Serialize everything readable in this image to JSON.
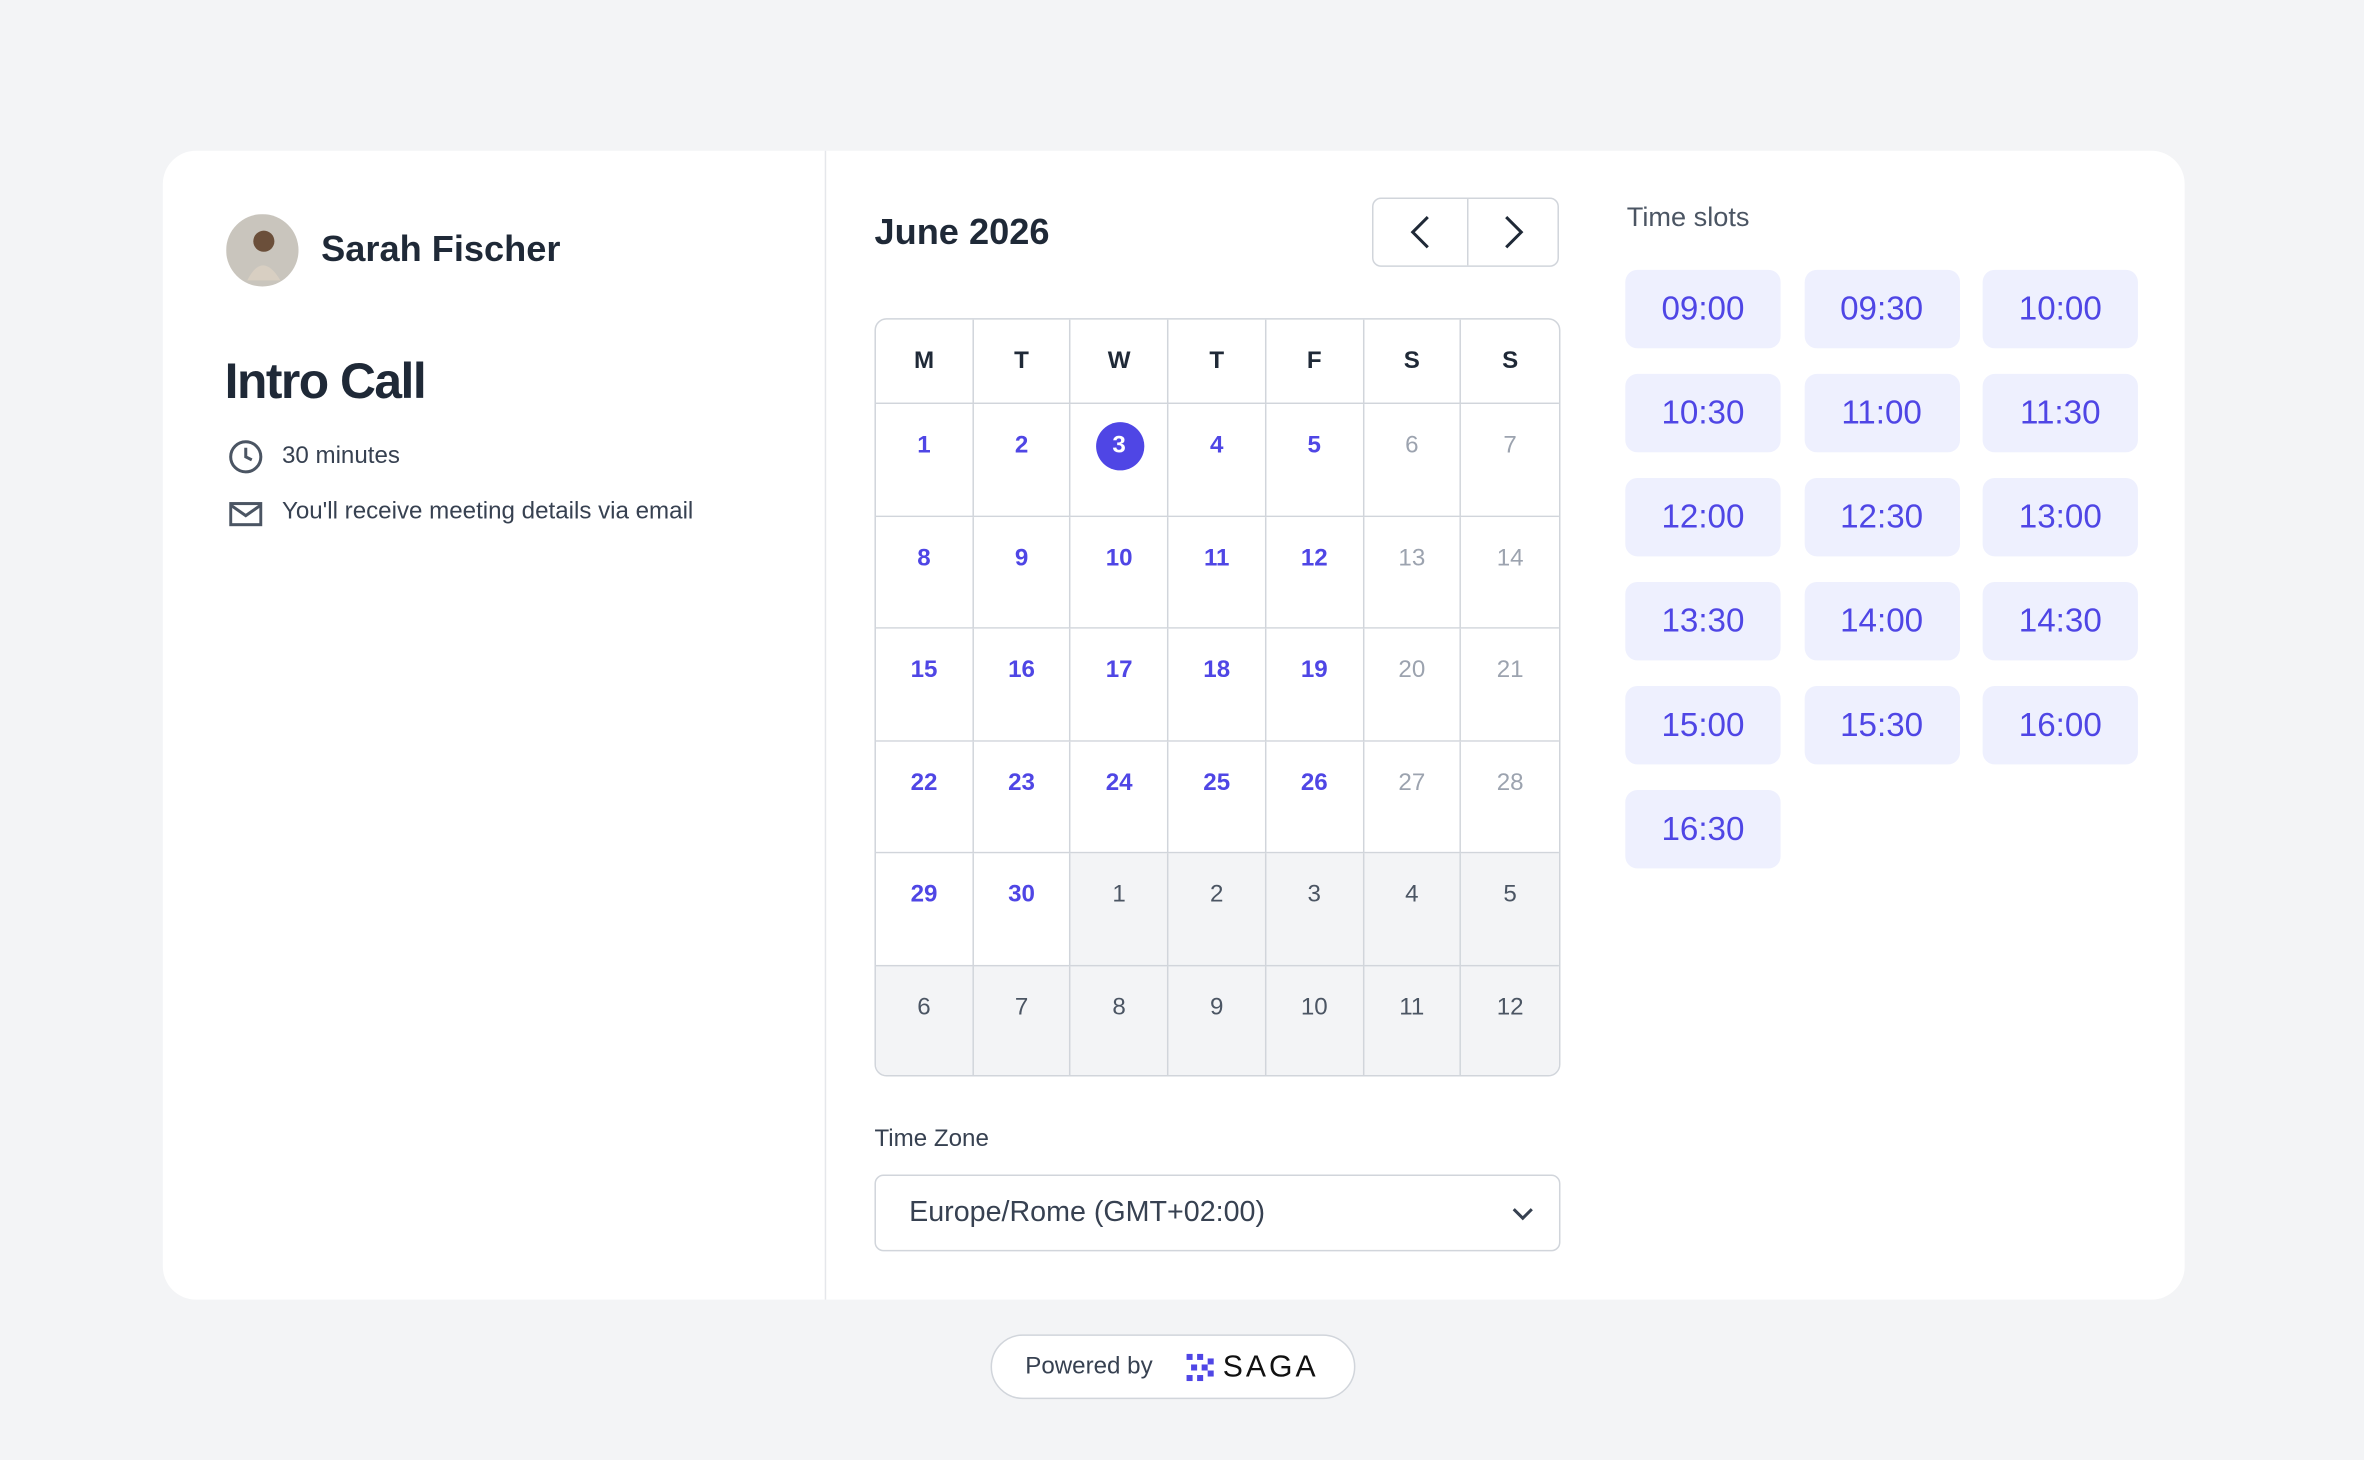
{
  "host": {
    "name": "Sarah Fischer"
  },
  "event": {
    "title": "Intro Call",
    "duration": "30 minutes",
    "note": "You'll receive meeting details via email"
  },
  "calendar": {
    "month": "June 2026",
    "weekdays": [
      "M",
      "T",
      "W",
      "T",
      "F",
      "S",
      "S"
    ],
    "weeks": [
      [
        1,
        2,
        3,
        4,
        5,
        6,
        7
      ],
      [
        8,
        9,
        10,
        11,
        12,
        13,
        14
      ],
      [
        15,
        16,
        17,
        18,
        19,
        20,
        21
      ],
      [
        22,
        23,
        24,
        25,
        26,
        27,
        28
      ],
      [
        29,
        30,
        1,
        2,
        3,
        4,
        5
      ],
      [
        6,
        7,
        8,
        9,
        10,
        11,
        12
      ]
    ]
  },
  "timezone": {
    "label": "Time Zone",
    "value": "Europe/Rome (GMT+02:00)"
  },
  "slots": {
    "title": "Time slots",
    "times": [
      "09:00",
      "09:30",
      "10:00",
      "10:30",
      "11:00",
      "11:30",
      "12:00",
      "12:30",
      "13:00",
      "13:30",
      "14:00",
      "14:30",
      "15:00",
      "15:30",
      "16:00",
      "16:30"
    ]
  },
  "footer": {
    "powered_by": "Powered by",
    "brand": "SAGA"
  }
}
